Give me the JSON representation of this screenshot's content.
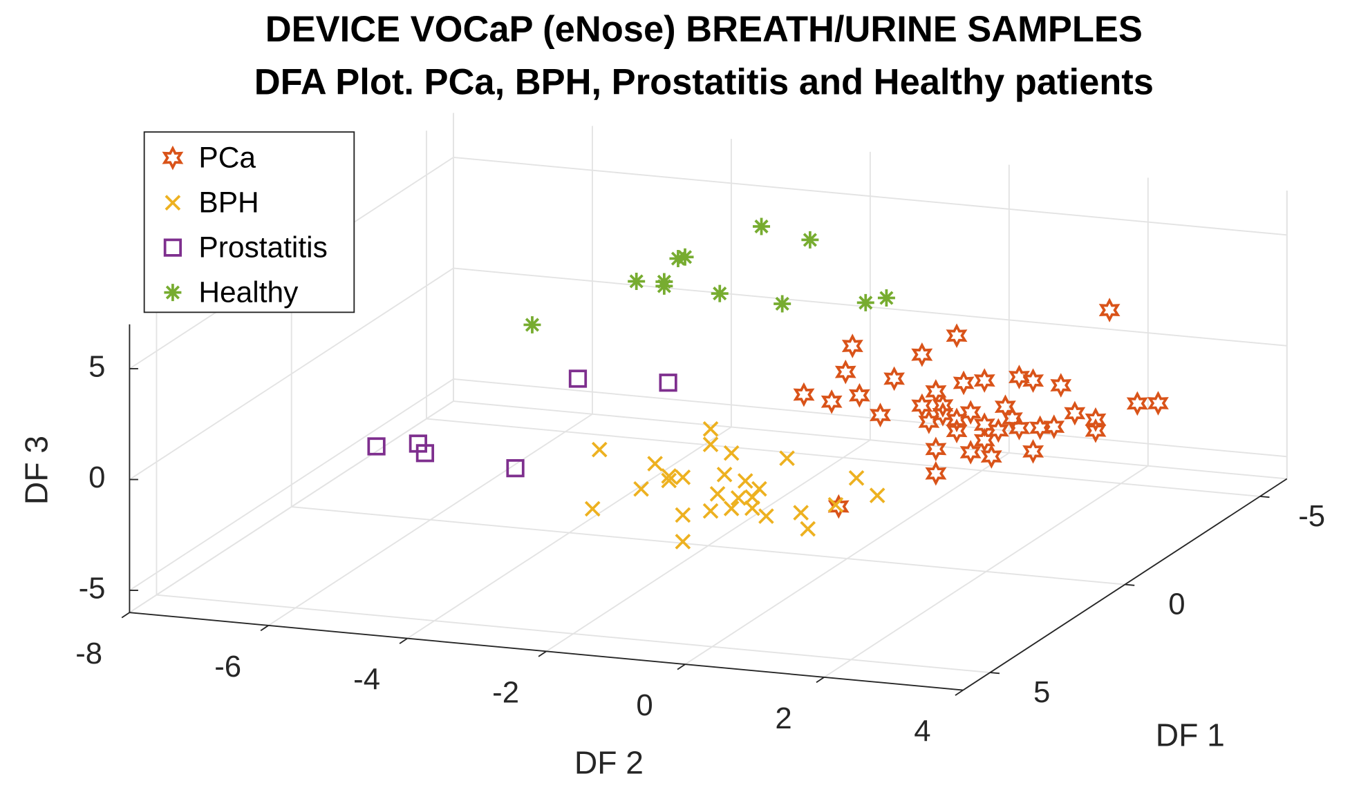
{
  "chart_data": {
    "type": "scatter3d",
    "title": [
      "DEVICE VOCaP (eNose) BREATH/URINE SAMPLES",
      "DFA Plot. PCa, BPH, Prostatitis and Healthy patients"
    ],
    "xlabel": "DF 2",
    "ylabel": "DF 1",
    "zlabel": "DF 3",
    "xlim": [
      -8,
      4
    ],
    "ylim": [
      -6,
      6
    ],
    "zlim": [
      -6,
      7
    ],
    "xticks": [
      -8,
      -6,
      -4,
      -2,
      0,
      2,
      4
    ],
    "yticks": [
      -5,
      0,
      5
    ],
    "zticks": [
      -5,
      0,
      5
    ],
    "grid": true,
    "legend": "northwest",
    "series": [
      {
        "name": "PCa",
        "color": "#D95319",
        "marker": "hexagram",
        "x": [
          3.0,
          0.8,
          -0.7,
          0.3,
          -0.8,
          -0.1,
          -1.4,
          -1.0,
          -0.6,
          -0.3,
          0.5,
          0.9,
          1.2,
          1.7,
          1.9,
          2.3,
          0.3,
          0.6,
          0.4,
          0.6,
          0.8,
          1.0,
          1.2,
          1.5,
          1.6,
          1.4,
          1.7,
          2.0,
          2.5,
          2.8,
          2.8,
          2.2,
          3.4,
          3.7,
          0.5,
          1.0,
          1.3,
          1.9,
          0.5,
          1.2,
          0.8,
          -0.9
        ],
        "y": [
          -2,
          -2,
          -2,
          -2,
          -2,
          -2,
          -2,
          -2,
          -2,
          -2,
          -2,
          -2,
          -2,
          -2,
          -2,
          -2,
          -2,
          -2,
          -2,
          -2,
          -2,
          -2,
          -2,
          -2,
          -2,
          -2,
          -2,
          -2,
          -2,
          -2,
          -2,
          -2,
          -2,
          -2,
          -2,
          -2,
          -2,
          -2,
          -2,
          -2,
          -2,
          -2
        ],
        "z": [
          4.5,
          2.7,
          1.8,
          1.7,
          0.6,
          0.5,
          -0.6,
          -0.8,
          -0.4,
          -1.2,
          0.1,
          0.6,
          0.8,
          1.1,
          1.0,
          0.9,
          -0.6,
          -0.5,
          -1.3,
          -0.9,
          -1.1,
          -0.7,
          -1.2,
          -0.3,
          -0.8,
          -1.4,
          -1.2,
          -1.1,
          -0.3,
          -0.5,
          -1.0,
          -1.0,
          0.4,
          0.5,
          -2.5,
          -2.5,
          -2.6,
          -2.2,
          -3.6,
          -1.9,
          -1.6,
          -5.5
        ]
      },
      {
        "name": "BPH",
        "color": "#EDB120",
        "marker": "x",
        "x": [
          -2.4,
          -2.5,
          -1.8,
          -1.6,
          -1.4,
          -1.2,
          -1.4,
          -1.2,
          -1.2,
          -0.8,
          -0.8,
          -0.5,
          -0.6,
          -0.7,
          -0.8,
          -0.5,
          -0.4,
          -0.3,
          -0.2,
          -0.1,
          -0.2,
          0.0,
          0.3,
          0.5,
          0.6,
          1.0,
          1.3,
          1.6
        ],
        "y": [
          3,
          3,
          3,
          3,
          3,
          3,
          3,
          3,
          3,
          3,
          3,
          3,
          3,
          3,
          3,
          3,
          3,
          3,
          3,
          3,
          3,
          3,
          3,
          3,
          3,
          3,
          3,
          3
        ],
        "z": [
          0.6,
          -2.1,
          -1.0,
          0.2,
          -0.3,
          -0.3,
          -0.5,
          -2.0,
          -3.2,
          2.0,
          1.3,
          1.0,
          0.0,
          -0.9,
          -1.7,
          -1.5,
          -1.0,
          -0.2,
          -0.9,
          -0.5,
          -1.4,
          -1.7,
          1.0,
          -1.4,
          -2.1,
          -0.9,
          0.4,
          -0.3
        ]
      },
      {
        "name": "Prostatitis",
        "color": "#7E2F8E",
        "marker": "square",
        "x": [
          -6.0,
          -5.4,
          -5.3,
          -4.0,
          -3.1,
          -1.8
        ],
        "y": [
          2,
          2,
          2,
          2,
          2,
          2
        ],
        "z": [
          -1.1,
          -0.8,
          -1.2,
          -1.5,
          2.8,
          3.0
        ]
      },
      {
        "name": "Healthy",
        "color": "#77AC30",
        "marker": "asterisk",
        "x": [
          -5.7,
          -4.2,
          -3.8,
          -3.8,
          -3.6,
          -3.5,
          -3.0,
          -2.4,
          -2.1,
          -1.7,
          -0.9,
          -0.6
        ],
        "y": [
          -3,
          -3,
          -3,
          -3,
          -3,
          -3,
          -3,
          -3,
          -3,
          -3,
          -3,
          -3
        ],
        "z": [
          0.5,
          2.9,
          2.8,
          3.0,
          4.1,
          4.2,
          2.7,
          5.9,
          2.5,
          5.5,
          2.9,
          3.2
        ]
      }
    ]
  }
}
